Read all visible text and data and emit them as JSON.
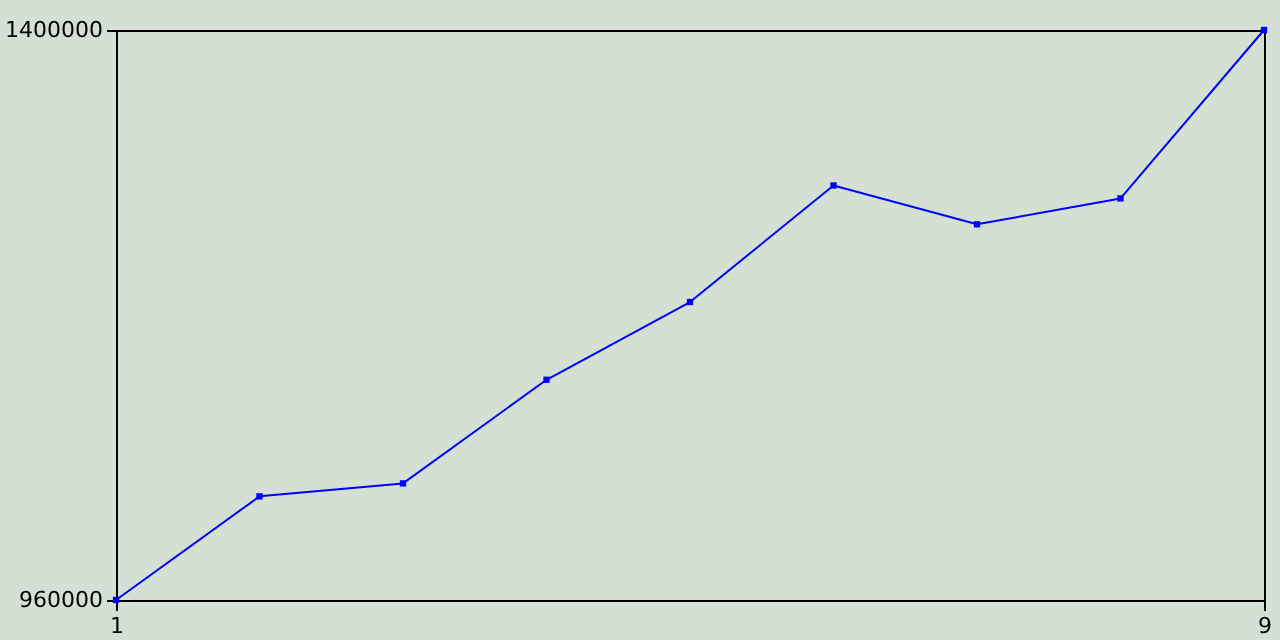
{
  "chart_data": {
    "type": "line",
    "x": [
      1,
      2,
      3,
      4,
      5,
      6,
      7,
      8,
      9
    ],
    "series": [
      {
        "color": "#0000ff",
        "values": [
          960000,
          1040000,
          1050000,
          1130000,
          1190000,
          1280000,
          1250000,
          1270000,
          1400000
        ]
      }
    ],
    "xlim": [
      1,
      9
    ],
    "xticks": [
      1,
      9
    ],
    "ylim": [
      960000,
      1400000
    ],
    "yticks": [
      960000,
      1400000
    ],
    "grid": false,
    "legend": false,
    "marker": "square",
    "line_style": "solid"
  }
}
